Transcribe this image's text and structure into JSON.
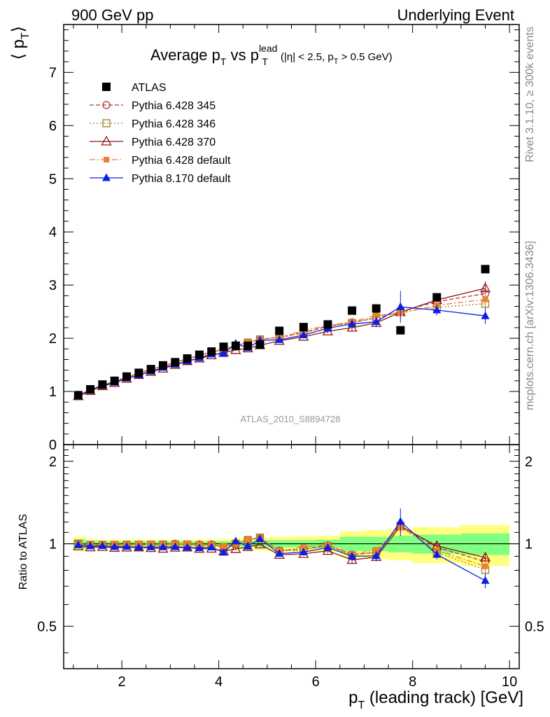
{
  "header": {
    "left": "900 GeV pp",
    "right": "Underlying Event"
  },
  "side": {
    "rivet": "Rivet 3.1.10, ≥ 300k events",
    "mcplots": "mcplots.cern.ch [arXiv:1306.3436]"
  },
  "watermark": "ATLAS_2010_S8894728",
  "title": {
    "main": "Average p",
    "main_sub": "T",
    "vs": " vs p",
    "vs_sup": "lead",
    "vs_sub": "T",
    "cuts_a": "(|η| < 2.5, p",
    "cuts_sub": "T",
    "cuts_b": " > 0.5 GeV)"
  },
  "axes": {
    "ylabel_main": "⟨ p",
    "ylabel_main_sub": "T",
    "ylabel_main_end": "⟩",
    "ylabel_ratio": "Ratio to ATLAS",
    "xlabel": "p",
    "xlabel_sub": "T",
    "xlabel_rest": " (leading track) [GeV]"
  },
  "colors": {
    "atlas": "#000000",
    "p345": "#b8333a",
    "p346": "#a08020",
    "p370": "#8c1717",
    "pdef": "#f08030",
    "p8": "#0a1ee6",
    "band_inner": "#80ff80",
    "band_outer": "#ffff80"
  },
  "chart_data": {
    "type": "scatter",
    "x": [
      1.1,
      1.35,
      1.6,
      1.85,
      2.1,
      2.35,
      2.6,
      2.85,
      3.1,
      3.35,
      3.6,
      3.85,
      4.1,
      4.35,
      4.6,
      4.85,
      5.25,
      5.75,
      6.25,
      6.75,
      7.25,
      7.75,
      8.5,
      9.5
    ],
    "xlim": [
      0.8,
      10.2
    ],
    "ylim_main": [
      0,
      7.9
    ],
    "yticks_main": [
      0,
      1,
      2,
      3,
      4,
      5,
      6,
      7
    ],
    "ylim_ratio": [
      0.35,
      2.3
    ],
    "yticks_ratio_labels": [
      0.5,
      1,
      2
    ],
    "xticks": [
      2,
      4,
      6,
      8,
      10
    ],
    "ratio_bins": [
      1.0,
      1.25,
      1.5,
      1.75,
      2.0,
      2.25,
      2.5,
      2.75,
      3.0,
      3.25,
      3.5,
      3.75,
      4.0,
      4.25,
      4.5,
      4.75,
      5.0,
      5.5,
      6.0,
      6.5,
      7.0,
      7.5,
      8.0,
      9.0,
      10.0
    ],
    "band_inner": [
      0.04,
      0.025,
      0.02,
      0.02,
      0.02,
      0.02,
      0.02,
      0.02,
      0.02,
      0.02,
      0.02,
      0.02,
      0.02,
      0.025,
      0.025,
      0.03,
      0.03,
      0.03,
      0.035,
      0.06,
      0.06,
      0.07,
      0.08,
      0.09
    ],
    "band_outer": [
      0.06,
      0.04,
      0.035,
      0.035,
      0.035,
      0.035,
      0.035,
      0.035,
      0.035,
      0.035,
      0.035,
      0.035,
      0.04,
      0.045,
      0.05,
      0.055,
      0.06,
      0.065,
      0.07,
      0.11,
      0.12,
      0.13,
      0.15,
      0.17
    ],
    "series": [
      {
        "name": "ATLAS",
        "key": "atlas",
        "marker": "square-filled",
        "line": "none",
        "values": [
          0.93,
          1.04,
          1.13,
          1.2,
          1.28,
          1.35,
          1.42,
          1.49,
          1.55,
          1.62,
          1.69,
          1.75,
          1.84,
          1.86,
          1.86,
          1.88,
          2.14,
          2.21,
          2.26,
          2.52,
          2.56,
          2.15,
          2.77,
          3.3
        ],
        "errors": []
      },
      {
        "name": "Pythia 6.428 345",
        "key": "p345",
        "marker": "circle-open",
        "line": "dashed",
        "values": [
          0.93,
          1.03,
          1.12,
          1.19,
          1.27,
          1.34,
          1.41,
          1.48,
          1.55,
          1.61,
          1.68,
          1.74,
          1.79,
          1.86,
          1.92,
          1.98,
          2.02,
          2.11,
          2.23,
          2.3,
          2.38,
          2.5,
          2.69,
          2.84
        ],
        "errors": [
          0.01,
          0.01,
          0.01,
          0.01,
          0.01,
          0.01,
          0.01,
          0.01,
          0.01,
          0.01,
          0.01,
          0.01,
          0.01,
          0.02,
          0.02,
          0.02,
          0.03,
          0.03,
          0.04,
          0.06,
          0.07,
          0.1,
          0.08,
          0.12
        ]
      },
      {
        "name": "Pythia 6.428 346",
        "key": "p346",
        "marker": "square-open",
        "line": "dotted",
        "values": [
          0.93,
          1.03,
          1.12,
          1.19,
          1.27,
          1.34,
          1.41,
          1.48,
          1.54,
          1.61,
          1.67,
          1.73,
          1.79,
          1.86,
          1.92,
          1.98,
          2.01,
          2.1,
          2.22,
          2.29,
          2.39,
          2.5,
          2.58,
          2.65
        ],
        "errors": [
          0.01,
          0.01,
          0.01,
          0.01,
          0.01,
          0.01,
          0.01,
          0.01,
          0.01,
          0.01,
          0.01,
          0.01,
          0.01,
          0.02,
          0.02,
          0.02,
          0.03,
          0.03,
          0.04,
          0.06,
          0.07,
          0.1,
          0.08,
          0.12
        ]
      },
      {
        "name": "Pythia 6.428 370",
        "key": "p370",
        "marker": "triangle-open",
        "line": "solid",
        "values": [
          0.91,
          1.01,
          1.1,
          1.16,
          1.24,
          1.31,
          1.37,
          1.43,
          1.5,
          1.57,
          1.62,
          1.68,
          1.73,
          1.78,
          1.81,
          1.87,
          1.95,
          2.03,
          2.13,
          2.2,
          2.29,
          2.49,
          2.72,
          2.94
        ],
        "errors": [
          0.01,
          0.01,
          0.01,
          0.01,
          0.01,
          0.01,
          0.01,
          0.01,
          0.01,
          0.01,
          0.01,
          0.01,
          0.01,
          0.02,
          0.02,
          0.02,
          0.03,
          0.03,
          0.04,
          0.06,
          0.07,
          0.12,
          0.09,
          0.13
        ]
      },
      {
        "name": "Pythia 6.428 default",
        "key": "pdef",
        "marker": "square-filled-small",
        "line": "dashdot",
        "values": [
          0.93,
          1.03,
          1.12,
          1.2,
          1.27,
          1.35,
          1.42,
          1.48,
          1.55,
          1.62,
          1.68,
          1.74,
          1.8,
          1.86,
          1.92,
          1.98,
          2.01,
          2.15,
          2.24,
          2.31,
          2.43,
          2.47,
          2.62,
          2.73
        ],
        "errors": [
          0.01,
          0.01,
          0.01,
          0.01,
          0.01,
          0.01,
          0.01,
          0.01,
          0.01,
          0.01,
          0.01,
          0.01,
          0.01,
          0.02,
          0.02,
          0.02,
          0.03,
          0.03,
          0.04,
          0.06,
          0.07,
          0.1,
          0.08,
          0.12
        ]
      },
      {
        "name": "Pythia 8.170 default",
        "key": "p8",
        "marker": "triangle-filled",
        "line": "solid",
        "values": [
          0.92,
          1.02,
          1.11,
          1.17,
          1.25,
          1.31,
          1.38,
          1.45,
          1.51,
          1.57,
          1.63,
          1.7,
          1.71,
          1.9,
          1.82,
          1.96,
          1.97,
          2.06,
          2.19,
          2.27,
          2.31,
          2.59,
          2.53,
          2.42
        ],
        "errors": [
          0.01,
          0.01,
          0.01,
          0.01,
          0.01,
          0.01,
          0.01,
          0.01,
          0.01,
          0.01,
          0.01,
          0.01,
          0.02,
          0.02,
          0.03,
          0.03,
          0.04,
          0.05,
          0.06,
          0.08,
          0.1,
          0.3,
          0.1,
          0.15
        ]
      }
    ]
  }
}
